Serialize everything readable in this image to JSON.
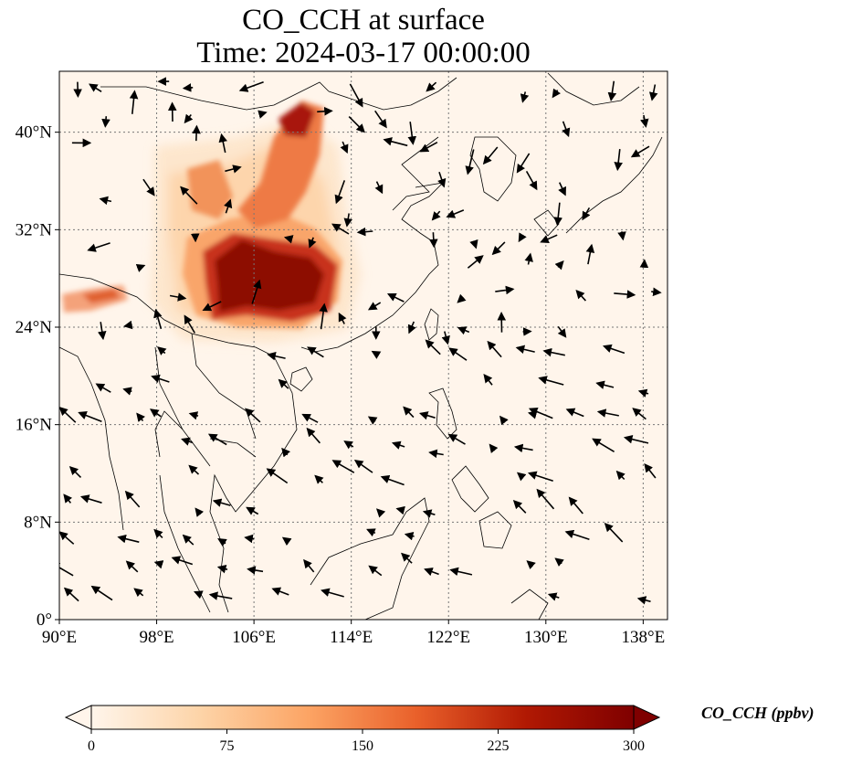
{
  "title": {
    "line1": "CO_CCH at surface",
    "line2": "Time: 2024-03-17 00:00:00"
  },
  "map": {
    "lon_range": [
      90,
      140
    ],
    "lat_range": [
      0,
      45
    ],
    "lon_ticks": [
      "90°E",
      "98°E",
      "106°E",
      "114°E",
      "122°E",
      "130°E",
      "138°E"
    ],
    "lat_ticks": [
      "0°",
      "8°N",
      "16°N",
      "24°N",
      "32°N",
      "40°N"
    ],
    "gridlines": true,
    "background_color": "#fff5eb",
    "coastline_color": "#000000"
  },
  "colorbar": {
    "label": "CO_CCH (ppbv)",
    "ticks": [
      "0",
      "75",
      "150",
      "225",
      "300"
    ],
    "min": 0,
    "max": 300,
    "extend": "both",
    "colors": [
      "#fff5eb",
      "#fdd4a8",
      "#fca464",
      "#e9602a",
      "#b11903",
      "#7f0000"
    ]
  }
}
